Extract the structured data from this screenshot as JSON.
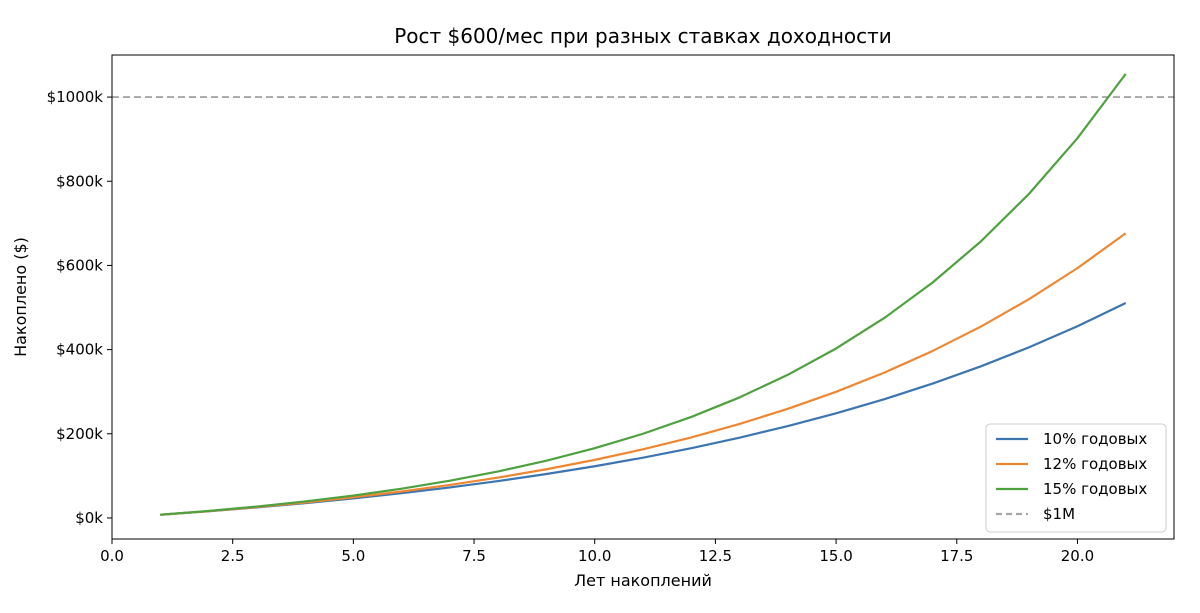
{
  "chart_data": {
    "type": "line",
    "title": "Рост $600/мес при разных ставках доходности",
    "xlabel": "Лет накоплений",
    "ylabel": "Накоплено ($)",
    "xlim": [
      0,
      22
    ],
    "ylim": [
      -50000,
      1100000
    ],
    "xticks": [
      0.0,
      2.5,
      5.0,
      7.5,
      10.0,
      12.5,
      15.0,
      17.5,
      20.0
    ],
    "xtick_labels": [
      "0.0",
      "2.5",
      "5.0",
      "7.5",
      "10.0",
      "12.5",
      "15.0",
      "17.5",
      "20.0"
    ],
    "yticks": [
      0,
      200000,
      400000,
      600000,
      800000,
      1000000
    ],
    "ytick_labels": [
      "$0k",
      "$200k",
      "$400k",
      "$600k",
      "$800k",
      "$1000k"
    ],
    "grid": false,
    "legend_position": "bottom-right",
    "x": [
      1,
      2,
      3,
      4,
      5,
      6,
      7,
      8,
      9,
      10,
      11,
      12,
      13,
      14,
      15,
      16,
      17,
      18,
      19,
      20,
      21
    ],
    "series": [
      {
        "name": "10% годовых",
        "color": "#3d75b0",
        "style": "solid",
        "values": [
          7540,
          15870,
          25070,
          35230,
          46460,
          58860,
          72560,
          87700,
          104420,
          122900,
          143300,
          165840,
          190750,
          218260,
          248650,
          282220,
          319310,
          360280,
          405540,
          455540,
          510770
        ]
      },
      {
        "name": "12% годовых",
        "color": "#ef8732",
        "style": "solid",
        "values": [
          7610,
          16190,
          25840,
          36730,
          48990,
          62810,
          78390,
          95940,
          115720,
          138010,
          163130,
          191430,
          223320,
          259260,
          299750,
          345390,
          396810,
          454750,
          520030,
          593600,
          676490
        ]
      },
      {
        "name": "15% годовых",
        "color": "#4ea13f",
        "style": "solid",
        "values": [
          7720,
          16700,
          27120,
          39220,
          53270,
          69590,
          88530,
          110520,
          136050,
          165680,
          200080,
          240020,
          286380,
          340200,
          402680,
          475210,
          559410,
          657150,
          770610,
          902320,
          1055220
        ]
      }
    ],
    "reference_lines": [
      {
        "name": "$1M",
        "y": 1000000,
        "color": "#a6a6a6",
        "style": "dashed"
      }
    ]
  }
}
